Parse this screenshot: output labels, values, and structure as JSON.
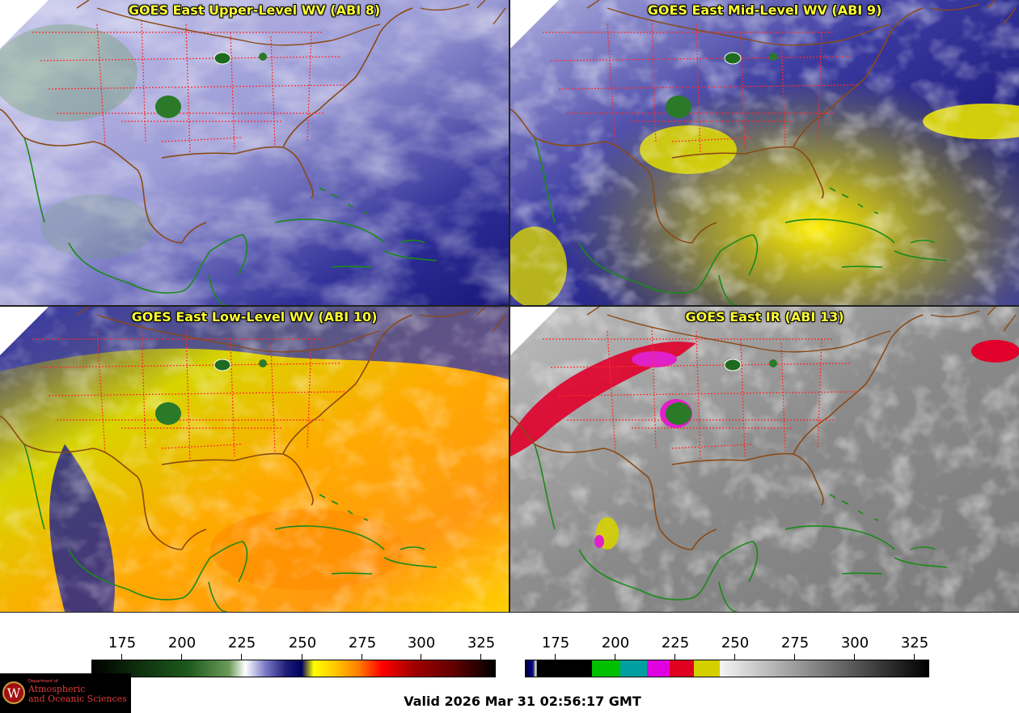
{
  "panels": [
    {
      "title": "GOES East Upper-Level WV (ABI 8)",
      "palette": "wv-upper"
    },
    {
      "title": "GOES East Mid-Level WV (ABI 9)",
      "palette": "wv-mid"
    },
    {
      "title": "GOES East Low-Level WV (ABI 10)",
      "palette": "wv-low"
    },
    {
      "title": "GOES East IR (ABI 13)",
      "palette": "ir"
    }
  ],
  "colorbars": {
    "wv": {
      "ticks": [
        "175",
        "200",
        "225",
        "250",
        "275",
        "300",
        "325"
      ]
    },
    "ir": {
      "ticks": [
        "175",
        "200",
        "225",
        "250",
        "275",
        "300",
        "325"
      ]
    }
  },
  "valid_time": "Valid 2026 Mar 31 02:56:17 GMT",
  "logo": {
    "small_text": "Department of",
    "line1": "Atmospheric",
    "line2": "and Oceanic Sciences",
    "shield_letter": "W"
  },
  "colors": {
    "title": "#ffff33",
    "state_borders": "#ff2a2a",
    "coastlines_land": "#8a4a14",
    "coastlines_water": "#1a8a1a"
  }
}
